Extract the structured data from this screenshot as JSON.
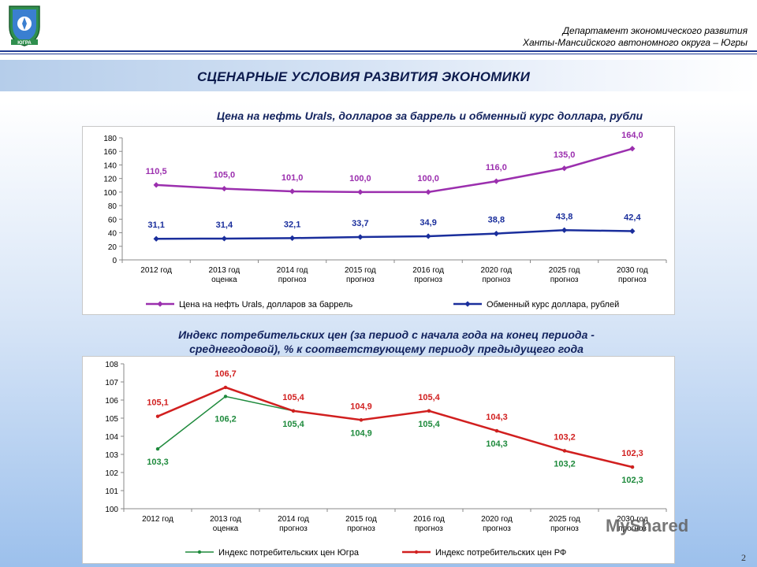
{
  "header": {
    "dept_line1": "Департамент экономического развития",
    "dept_line2": "Ханты-Мансийского автономного округа – Югры",
    "logo_text": "ЮГРА"
  },
  "banner": {
    "title": "СЦЕНАРНЫЕ УСЛОВИЯ РАЗВИТИЯ ЭКОНОМИКИ"
  },
  "footer": {
    "page_number": "2",
    "watermark": "MyShared"
  },
  "colors": {
    "purple": "#9b2fae",
    "navy": "#1a2e9c",
    "red": "#d11f1f",
    "green": "#1e8a3c"
  },
  "chart_data": [
    {
      "type": "line",
      "title": "Цена на нефть Urals, долларов за баррель и обменный курс доллара, рубли",
      "categories": [
        [
          "2012 год"
        ],
        [
          "2013 год",
          "оценка"
        ],
        [
          "2014 год",
          "прогноз"
        ],
        [
          "2015 год",
          "прогноз"
        ],
        [
          "2016 год",
          "прогноз"
        ],
        [
          "2020 год",
          "прогноз"
        ],
        [
          "2025 год",
          "прогноз"
        ],
        [
          "2030 год",
          "прогноз"
        ]
      ],
      "ylim": [
        0,
        180
      ],
      "yticks": [
        0,
        20,
        40,
        60,
        80,
        100,
        120,
        140,
        160,
        180
      ],
      "series": [
        {
          "name": "Цена на нефть Urals, долларов за баррель",
          "color": "#9b2fae",
          "values": [
            110.5,
            105.0,
            101.0,
            100.0,
            100.0,
            116.0,
            135.0,
            164.0
          ],
          "labels": [
            "110,5",
            "105,0",
            "101,0",
            "100,0",
            "100,0",
            "116,0",
            "135,0",
            "164,0"
          ]
        },
        {
          "name": "Обменный курс доллара, рублей",
          "color": "#1a2e9c",
          "values": [
            31.1,
            31.4,
            32.1,
            33.7,
            34.9,
            38.8,
            43.8,
            42.4
          ],
          "labels": [
            "31,1",
            "31,4",
            "32,1",
            "33,7",
            "34,9",
            "38,8",
            "43,8",
            "42,4"
          ]
        }
      ],
      "legend": "bottom"
    },
    {
      "type": "line",
      "title_lines": [
        "Индекс потребительских цен (за период с начала года на конец периода -",
        "среднегодовой), % к соответствующему периоду предыдущего года"
      ],
      "categories": [
        [
          "2012 год"
        ],
        [
          "2013 год",
          "оценка"
        ],
        [
          "2014 год",
          "прогноз"
        ],
        [
          "2015 год",
          "прогноз"
        ],
        [
          "2016 год",
          "прогноз"
        ],
        [
          "2020 год",
          "прогноз"
        ],
        [
          "2025 год",
          "прогноз"
        ],
        [
          "2030 год",
          "прогноз"
        ]
      ],
      "ylim": [
        100,
        108
      ],
      "yticks": [
        100,
        101,
        102,
        103,
        104,
        105,
        106,
        107,
        108
      ],
      "series": [
        {
          "name": "Индекс потребительских цен Югра",
          "color": "#1e8a3c",
          "values": [
            103.3,
            106.2,
            105.4,
            104.9,
            105.4,
            104.3,
            103.2,
            102.3
          ],
          "labels": [
            "103,3",
            "106,2",
            "105,4",
            "104,9",
            "105,4",
            "104,3",
            "103,2",
            "102,3"
          ]
        },
        {
          "name": "Индекс потребительских цен РФ",
          "color": "#d11f1f",
          "values": [
            105.1,
            106.7,
            105.4,
            104.9,
            105.4,
            104.3,
            103.2,
            102.3
          ],
          "labels": [
            "105,1",
            "106,7",
            "105,4",
            "104,9",
            "105,4",
            "104,3",
            "103,2",
            "102,3"
          ]
        }
      ],
      "legend": "bottom"
    }
  ]
}
